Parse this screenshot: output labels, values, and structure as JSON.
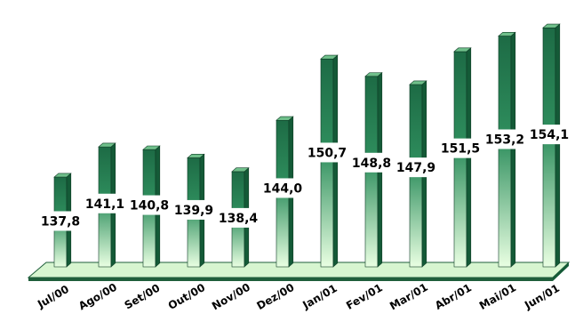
{
  "chart_data": {
    "type": "bar",
    "categories": [
      "Jul/00",
      "Ago/00",
      "Set/00",
      "Out/00",
      "Nov/00",
      "Dez/00",
      "Jan/01",
      "Fev/01",
      "Mar/01",
      "Abr/01",
      "Mai/01",
      "Jun/01"
    ],
    "values": [
      137.8,
      141.1,
      140.8,
      139.9,
      138.4,
      144.0,
      150.7,
      148.8,
      147.9,
      151.5,
      153.2,
      154.1
    ],
    "value_labels": [
      "137,8",
      "141,1",
      "140,8",
      "139,9",
      "138,4",
      "144,0",
      "150,7",
      "148,8",
      "147,9",
      "151,5",
      "153,2",
      "154,1"
    ],
    "title": "",
    "xlabel": "",
    "ylabel": "",
    "ylim": [
      128,
      155
    ],
    "grid": false,
    "legend": "none",
    "style": "3d-cylinder",
    "colors": {
      "bar_dark": "#1d6b45",
      "bar_mid": "#2f8f5e",
      "bar_light": "#e9ffe2",
      "bar_top": "#6fbf8a",
      "bar_side": "#145a37",
      "floor": "#d7f5d0",
      "floor_edge": "#1f5e3b"
    }
  }
}
